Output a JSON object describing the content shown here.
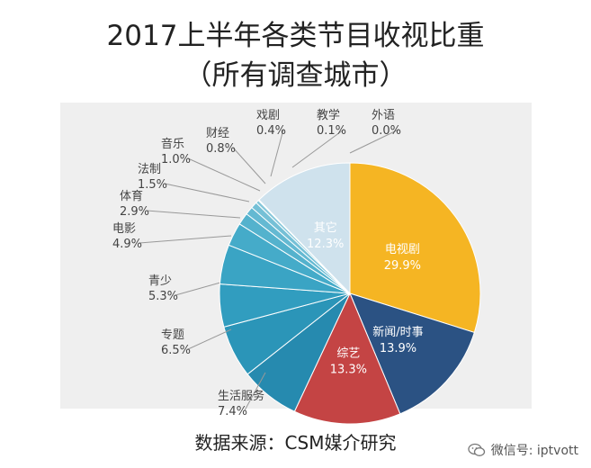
{
  "title": "2017上半年各类节目收视比重",
  "subtitle": "（所有调查城市）",
  "source": "数据来源：CSM媒介研究",
  "watermark": "微信号: iptvott",
  "chart_data": {
    "type": "pie",
    "title": "2017上半年各类节目收视比重",
    "subtitle": "（所有调查城市）",
    "unit": "%",
    "slices": [
      {
        "label": "电视剧",
        "value": 29.9,
        "display": "29.9%",
        "color": "#f5b523",
        "label_inside": true
      },
      {
        "label": "新闻/时事",
        "value": 13.9,
        "display": "13.9%",
        "color": "#2b5283",
        "label_inside": true
      },
      {
        "label": "综艺",
        "value": 13.3,
        "display": "13.3%",
        "color": "#c44444",
        "label_inside": true
      },
      {
        "label": "生活服务",
        "value": 7.4,
        "display": "7.4%",
        "color": "#268aaf",
        "label_inside": false
      },
      {
        "label": "专题",
        "value": 6.5,
        "display": "6.5%",
        "color": "#2b95b8",
        "label_inside": false
      },
      {
        "label": "青少",
        "value": 5.3,
        "display": "5.3%",
        "color": "#319dbf",
        "label_inside": false
      },
      {
        "label": "电影",
        "value": 4.9,
        "display": "4.9%",
        "color": "#3aa4c4",
        "label_inside": false
      },
      {
        "label": "体育",
        "value": 2.9,
        "display": "2.9%",
        "color": "#45abc9",
        "label_inside": false
      },
      {
        "label": "法制",
        "value": 1.5,
        "display": "1.5%",
        "color": "#54b2cd",
        "label_inside": false
      },
      {
        "label": "音乐",
        "value": 1.0,
        "display": "1.0%",
        "color": "#64b9d2",
        "label_inside": false
      },
      {
        "label": "财经",
        "value": 0.8,
        "display": "0.8%",
        "color": "#75c0d6",
        "label_inside": false
      },
      {
        "label": "戏剧",
        "value": 0.4,
        "display": "0.4%",
        "color": "#86c7da",
        "label_inside": false
      },
      {
        "label": "教学",
        "value": 0.1,
        "display": "0.1%",
        "color": "#98cfde",
        "label_inside": false
      },
      {
        "label": "外语",
        "value": 0.0,
        "display": "0.0%",
        "color": "#a9d6e2",
        "label_inside": false
      },
      {
        "label": "其它",
        "value": 12.3,
        "display": "12.3%",
        "color": "#cfe2ed",
        "label_inside": true
      }
    ]
  }
}
